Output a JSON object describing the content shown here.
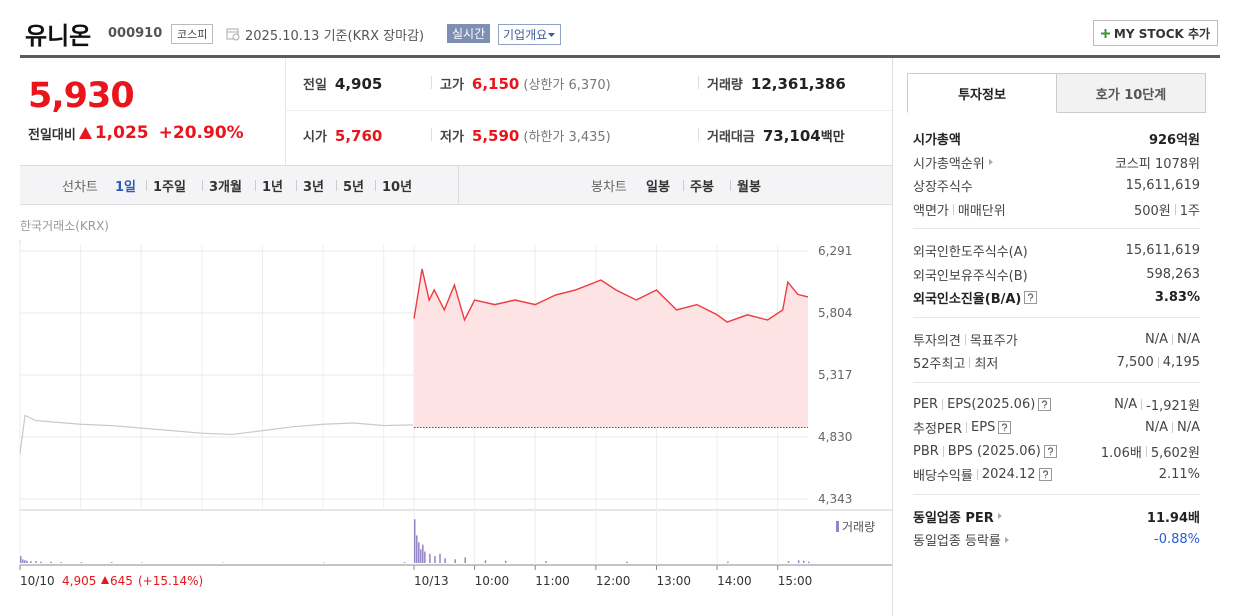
{
  "header": {
    "name": "유니온",
    "code": "000910",
    "market": "코스피",
    "date": "2025.10.13",
    "basis": "기준(KRX 장마감)",
    "realtime": "실시간",
    "overview": "기업개요",
    "mystock": "MY STOCK 추가"
  },
  "quote": {
    "price": "5,930",
    "change_label": "전일대비",
    "change": "1,025",
    "rate": "+20.90%",
    "rows": [
      [
        {
          "label": "전일",
          "value": "4,905"
        },
        {
          "label": "고가",
          "value": "6,150",
          "note": "(상한가 6,370)",
          "color": "#e8151d"
        },
        {
          "label": "거래량",
          "value": "12,361,386"
        }
      ],
      [
        {
          "label": "시가",
          "value": "5,760",
          "color": "#e8151d"
        },
        {
          "label": "저가",
          "value": "5,590",
          "note": "(하한가 3,435)",
          "color": "#e8151d"
        },
        {
          "label": "거래대금",
          "value": "73,104",
          "unit": "백만"
        }
      ]
    ]
  },
  "toolbar": {
    "line_label": "선차트",
    "periods": [
      "1일",
      "1주일",
      "3개월",
      "1년",
      "3년",
      "5년",
      "10년"
    ],
    "selected": 0,
    "candle_label": "봉차트",
    "candles": [
      "일봉",
      "주봉",
      "월봉"
    ]
  },
  "chart_data": {
    "type": "line",
    "source": "한국거래소(KRX)",
    "xlim": [
      0,
      780
    ],
    "xticks": [
      {
        "value": 0,
        "label": "10/10"
      },
      {
        "value": 390,
        "label": "10/13"
      },
      {
        "value": 450,
        "label": "10:00"
      },
      {
        "value": 510,
        "label": "11:00"
      },
      {
        "value": 570,
        "label": "12:00"
      },
      {
        "value": 630,
        "label": "13:00"
      },
      {
        "value": 690,
        "label": "14:00"
      },
      {
        "value": 750,
        "label": "15:00"
      }
    ],
    "xgrid": [
      60,
      120,
      180,
      240,
      300,
      360
    ],
    "ylim": [
      4343,
      6291
    ],
    "yticks": [
      {
        "value": 4343,
        "label": "4,343"
      },
      {
        "value": 4830,
        "label": "4,830"
      },
      {
        "value": 5317,
        "label": "5,317"
      },
      {
        "value": 5804,
        "label": "5,804"
      },
      {
        "value": 6291,
        "label": "6,291"
      }
    ],
    "grid": true,
    "reference_line": 4905,
    "series": [
      {
        "color": "#c9c9c9",
        "x": [
          0,
          5,
          15,
          30,
          60,
          90,
          120,
          150,
          180,
          210,
          240,
          270,
          300,
          330,
          360,
          389
        ],
        "values": [
          4700,
          5000,
          4960,
          4950,
          4930,
          4920,
          4900,
          4880,
          4860,
          4850,
          4880,
          4910,
          4930,
          4940,
          4920,
          4925
        ]
      },
      {
        "color": "#ee3b42",
        "fill": "#fde3e3",
        "x": [
          390,
          398,
          405,
          410,
          420,
          430,
          440,
          450,
          470,
          490,
          510,
          530,
          550,
          575,
          590,
          610,
          630,
          650,
          670,
          690,
          700,
          720,
          740,
          755,
          760,
          770,
          780
        ],
        "values": [
          5760,
          6150,
          5906,
          5985,
          5828,
          6024,
          5749,
          5906,
          5870,
          5906,
          5870,
          5945,
          5985,
          6063,
          5985,
          5906,
          5985,
          5828,
          5870,
          5790,
          5733,
          5790,
          5749,
          5828,
          6047,
          5950,
          5930
        ]
      }
    ],
    "volume": {
      "name": "거래량",
      "color": "#9384c9",
      "ylim": [
        0,
        100
      ],
      "series": [
        {
          "x": [
            0,
            2,
            4,
            6,
            10,
            15,
            20,
            30,
            40,
            60,
            90,
            120,
            200,
            300,
            380
          ],
          "values": [
            15,
            8,
            6,
            5,
            4,
            4,
            3,
            3,
            2,
            2,
            2,
            1,
            1,
            1,
            2
          ]
        },
        {
          "x": [
            390,
            392,
            394,
            396,
            398,
            400,
            405,
            410,
            415,
            420,
            430,
            440,
            460,
            480,
            520,
            600,
            700,
            760,
            770,
            775,
            780
          ],
          "values": [
            95,
            60,
            45,
            30,
            40,
            25,
            20,
            15,
            20,
            10,
            8,
            12,
            6,
            5,
            4,
            3,
            3,
            4,
            6,
            5,
            3
          ]
        }
      ]
    },
    "prev_day": {
      "close": "4,905",
      "change": "645",
      "rate": "(+15.14%)"
    }
  },
  "sidebar": {
    "tabs": [
      "투자정보",
      "호가 10단계"
    ],
    "active": 0,
    "groups": [
      [
        {
          "label": [
            "시가총액"
          ],
          "value": [
            "926억원"
          ],
          "bold": true
        },
        {
          "label": [
            "시가총액순위"
          ],
          "value": [
            "코스피 1078위"
          ],
          "arrow": true
        },
        {
          "label": [
            "상장주식수"
          ],
          "value": [
            "15,611,619"
          ]
        },
        {
          "label": [
            "액면가",
            "매매단위"
          ],
          "value": [
            "500원",
            "1주"
          ]
        }
      ],
      [
        {
          "label": [
            "외국인한도주식수(A)"
          ],
          "value": [
            "15,611,619"
          ]
        },
        {
          "label": [
            "외국인보유주식수(B)"
          ],
          "value": [
            "598,263"
          ]
        },
        {
          "label": [
            "외국인소진율(B/A)"
          ],
          "value": [
            "3.83%"
          ],
          "bold": true,
          "help": true
        }
      ],
      [
        {
          "label": [
            "투자의견",
            "목표주가"
          ],
          "value": [
            "N/A",
            "N/A"
          ]
        },
        {
          "label": [
            "52주최고",
            "최저"
          ],
          "value": [
            "7,500",
            "4,195"
          ]
        }
      ],
      [
        {
          "label": [
            "PER",
            "EPS(2025.06)"
          ],
          "value": [
            "N/A",
            "-1,921원"
          ],
          "help": true
        },
        {
          "label": [
            "추정PER",
            "EPS"
          ],
          "value": [
            "N/A",
            "N/A"
          ],
          "help": true
        },
        {
          "label": [
            "PBR",
            "BPS (2025.06)"
          ],
          "value": [
            "1.06배",
            "5,602원"
          ],
          "help": true
        },
        {
          "label": [
            "배당수익률",
            "2024.12"
          ],
          "value": [
            "2.11%"
          ],
          "help": true
        }
      ],
      [
        {
          "label": [
            "동일업종 PER"
          ],
          "value": [
            "11.94배"
          ],
          "bold": true,
          "arrow": true
        },
        {
          "label": [
            "동일업종 등락률"
          ],
          "value": [
            "-0.88%"
          ],
          "arrow": true,
          "color": "#2a5bd7"
        }
      ]
    ]
  }
}
